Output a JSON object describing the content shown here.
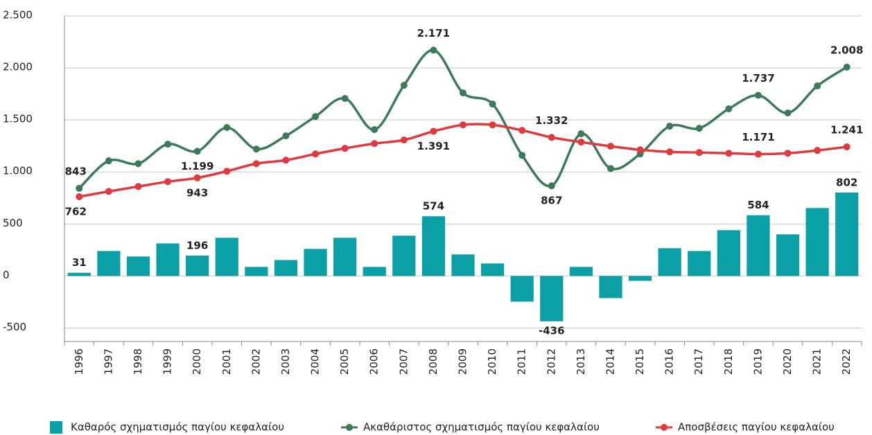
{
  "chart_data": {
    "type": "bar_line",
    "categories": [
      "1996",
      "1997",
      "1998",
      "1999",
      "2000",
      "2001",
      "2002",
      "2003",
      "2004",
      "2005",
      "2006",
      "2007",
      "2008",
      "2009",
      "2010",
      "2011",
      "2012",
      "2013",
      "2014",
      "2015",
      "2016",
      "2017",
      "2018",
      "2019",
      "2020",
      "2021",
      "2022"
    ],
    "series": [
      {
        "name": "Καθαρός σχηματισμός παγίου κεφαλαίου",
        "type": "bar",
        "color": "#0aa0a6",
        "values": [
          31,
          240,
          187,
          313,
          196,
          367,
          87,
          153,
          260,
          367,
          87,
          387,
          574,
          207,
          120,
          -247,
          -436,
          87,
          -213,
          -47,
          267,
          240,
          440,
          584,
          400,
          653,
          802
        ],
        "value_labels": [
          "31",
          null,
          null,
          null,
          "196",
          null,
          null,
          null,
          null,
          null,
          null,
          null,
          "574",
          null,
          null,
          null,
          "-436",
          null,
          null,
          null,
          null,
          null,
          null,
          "584",
          null,
          null,
          "802"
        ]
      },
      {
        "name": "Ακαθάριστος σχηματισμός παγίου κεφαλαίου",
        "type": "line",
        "color": "#3d7a5a",
        "values": [
          843,
          1107,
          1080,
          1267,
          1199,
          1427,
          1220,
          1347,
          1533,
          1707,
          1407,
          1833,
          2171,
          1760,
          1653,
          1160,
          867,
          1367,
          1033,
          1173,
          1440,
          1420,
          1607,
          1737,
          1567,
          1827,
          2008
        ],
        "value_labels": [
          "843",
          null,
          null,
          null,
          "1.199",
          null,
          null,
          null,
          null,
          null,
          null,
          null,
          "2.171",
          null,
          null,
          null,
          "867",
          null,
          null,
          null,
          null,
          null,
          null,
          "1.737",
          null,
          null,
          "2.008"
        ]
      },
      {
        "name": "Αποσβέσεις παγίου κεφαλαίου",
        "type": "line",
        "color": "#e0393e",
        "values": [
          762,
          813,
          860,
          907,
          943,
          1007,
          1080,
          1113,
          1173,
          1227,
          1273,
          1307,
          1391,
          1453,
          1453,
          1400,
          1332,
          1287,
          1247,
          1213,
          1193,
          1187,
          1180,
          1171,
          1180,
          1207,
          1241
        ],
        "value_labels": [
          "762",
          null,
          null,
          null,
          "943",
          null,
          null,
          null,
          null,
          null,
          null,
          null,
          "1.391",
          null,
          null,
          null,
          "1.332",
          null,
          null,
          null,
          null,
          null,
          null,
          "1.171",
          null,
          null,
          "1.241"
        ]
      }
    ],
    "ylim": [
      -630,
      2500
    ],
    "yticks": [
      -500,
      0,
      500,
      {
        "value": 1000,
        "label": "1.000"
      },
      {
        "value": 1500,
        "label": "1.500"
      },
      {
        "value": 2000,
        "label": "2.000"
      },
      {
        "value": 2500,
        "label": "2.500"
      }
    ],
    "grid": true,
    "legend": "bottom"
  }
}
